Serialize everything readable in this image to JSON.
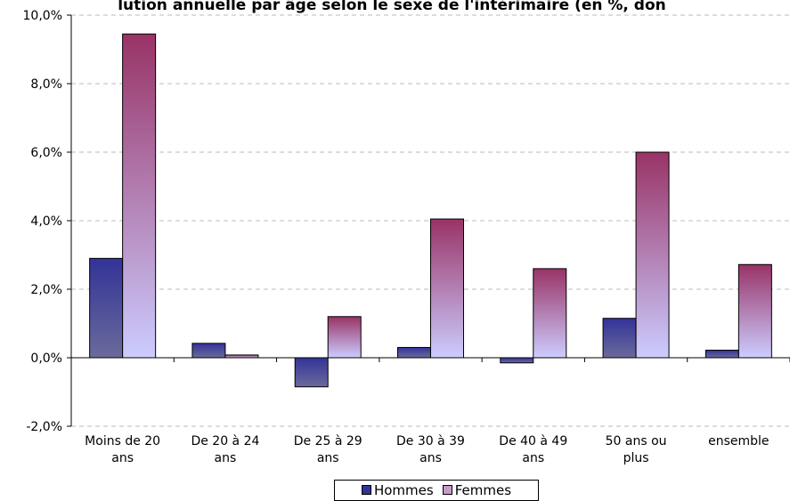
{
  "chart_data": {
    "type": "bar",
    "title": "lution annuelle par âge selon le sexe de l'intérimaire (en %, don",
    "categories": [
      "Moins de 20 ans",
      "De 20 à 24 ans",
      "De 25 à 29 ans",
      "De 30 à 39 ans",
      "De 40 à 49 ans",
      "50 ans ou plus",
      "ensemble"
    ],
    "series": [
      {
        "name": "Hommes",
        "color": "#333399",
        "values": [
          2.9,
          0.42,
          -0.85,
          0.3,
          -0.15,
          1.15,
          0.22
        ]
      },
      {
        "name": "Femmes",
        "color": "#993366",
        "values": [
          9.45,
          0.08,
          1.2,
          4.05,
          2.6,
          6.0,
          2.72
        ]
      }
    ],
    "ylim": [
      -2,
      10
    ],
    "yticks": [
      {
        "value": -2,
        "label": "-2,0%"
      },
      {
        "value": 0,
        "label": "0,0%"
      },
      {
        "value": 2,
        "label": "2,0%"
      },
      {
        "value": 4,
        "label": "4,0%"
      },
      {
        "value": 6,
        "label": "6,0%"
      },
      {
        "value": 8,
        "label": "8,0%"
      },
      {
        "value": 10,
        "label": "10,0%"
      }
    ],
    "grid": true,
    "legend": "bottom"
  }
}
